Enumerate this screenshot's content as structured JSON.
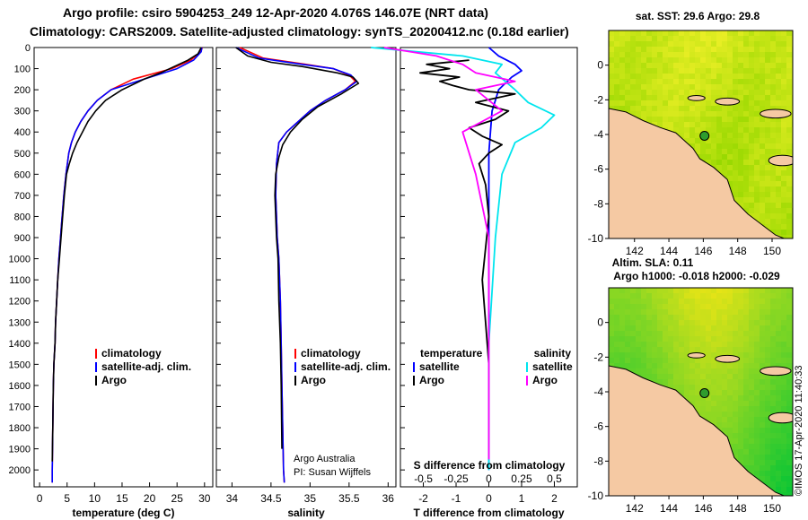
{
  "header": {
    "line1": "Argo profile: csiro 5904253_249 12-Apr-2020 4.076S 146.07E (NRT data)",
    "line2": "Climatology: CARS2009. Satellite-adjusted climatology: synTS_20200412.nc (0.18d earlier)"
  },
  "colors": {
    "climatology": "#ff0000",
    "satellite": "#0000ff",
    "argo": "#000000",
    "sat_salinity": "#00e5ee",
    "argo_salinity": "#ff00ff",
    "land": "#f5c9a3"
  },
  "chart_data": [
    {
      "type": "line",
      "xlabel": "temperature (deg C)",
      "xticks": [
        0,
        5,
        10,
        15,
        20,
        25,
        30
      ],
      "xlim": [
        -1,
        31.5
      ],
      "ylim": [
        2080,
        0
      ],
      "yticks": [
        0,
        100,
        200,
        300,
        400,
        500,
        600,
        700,
        800,
        900,
        1000,
        1100,
        1200,
        1300,
        1400,
        1500,
        1600,
        1700,
        1800,
        1900,
        2000
      ],
      "legend": [
        "climatology",
        "satellite-adj. clim.",
        "Argo"
      ],
      "series": [
        {
          "name": "climatology",
          "x": [
            29.6,
            29.3,
            27.5,
            24,
            17,
            13,
            10.5,
            8.8,
            7.5,
            6.5,
            5.8,
            5.3,
            4.8,
            4.4,
            4.1,
            3.8,
            3.5,
            3.3,
            3.1,
            2.9,
            2.8,
            2.6,
            2.5,
            2.4,
            2.3,
            2.3
          ],
          "y": [
            0,
            20,
            60,
            100,
            150,
            200,
            250,
            300,
            350,
            400,
            450,
            500,
            600,
            700,
            800,
            900,
            1000,
            1100,
            1200,
            1300,
            1400,
            1500,
            1600,
            1800,
            2000,
            2060
          ]
        },
        {
          "name": "satellite-adj. clim.",
          "x": [
            29.5,
            29.4,
            28,
            25,
            19,
            13,
            10.5,
            8.8,
            7.5,
            6.5,
            5.8,
            5.3,
            4.8,
            4.4,
            4.1,
            3.8,
            3.5,
            3.3,
            3.1,
            2.9,
            2.8,
            2.6,
            2.5,
            2.4,
            2.3,
            2.3
          ],
          "y": [
            0,
            20,
            60,
            100,
            150,
            200,
            250,
            300,
            350,
            400,
            450,
            500,
            600,
            700,
            800,
            900,
            1000,
            1100,
            1200,
            1300,
            1400,
            1500,
            1600,
            1800,
            2000,
            2060
          ]
        },
        {
          "name": "Argo",
          "x": [
            29.4,
            28.8,
            27,
            24.5,
            22,
            19,
            15,
            12,
            10.2,
            8.8,
            7.8,
            6.8,
            6,
            5.4,
            4.9,
            4.5,
            4.2,
            3.9,
            3.6,
            3.3,
            3.1,
            2.9,
            2.8,
            2.6,
            2.5,
            2.4,
            2.3
          ],
          "y": [
            0,
            30,
            60,
            90,
            120,
            150,
            200,
            250,
            300,
            350,
            400,
            450,
            500,
            550,
            600,
            700,
            800,
            900,
            1000,
            1100,
            1200,
            1300,
            1400,
            1500,
            1600,
            1800,
            1960
          ]
        }
      ]
    },
    {
      "type": "line",
      "xlabel": "salinity",
      "xticks": [
        34,
        34.5,
        35,
        35.5,
        36
      ],
      "xlim": [
        33.8,
        36.1
      ],
      "ylim": [
        2080,
        0
      ],
      "legend": [
        "climatology",
        "satellite-adj. clim.",
        "Argo"
      ],
      "annotation": [
        "Argo Australia",
        "PI: Susan Wijffels"
      ],
      "series": [
        {
          "name": "climatology",
          "x": [
            34.1,
            34.4,
            34.95,
            35.3,
            35.5,
            35.58,
            35.45,
            35.2,
            35.0,
            34.85,
            34.7,
            34.6,
            34.57,
            34.56,
            34.57,
            34.58,
            34.6,
            34.62,
            34.63,
            34.64,
            34.65,
            34.66,
            34.67
          ],
          "y": [
            0,
            50,
            80,
            100,
            130,
            160,
            200,
            250,
            300,
            350,
            400,
            450,
            550,
            700,
            800,
            900,
            1000,
            1200,
            1400,
            1600,
            1800,
            2000,
            2060
          ]
        },
        {
          "name": "satellite-adj. clim.",
          "x": [
            34.05,
            34.35,
            34.9,
            35.3,
            35.52,
            35.6,
            35.45,
            35.2,
            35.0,
            34.85,
            34.7,
            34.6,
            34.57,
            34.56,
            34.57,
            34.58,
            34.6,
            34.62,
            34.63,
            34.64,
            34.65,
            34.66,
            34.67
          ],
          "y": [
            0,
            50,
            80,
            100,
            130,
            160,
            200,
            250,
            300,
            350,
            400,
            450,
            550,
            700,
            800,
            900,
            1000,
            1200,
            1400,
            1600,
            1800,
            2000,
            2060
          ]
        },
        {
          "name": "Argo",
          "x": [
            34.05,
            34.2,
            34.5,
            34.9,
            35.35,
            35.55,
            35.62,
            35.4,
            35.1,
            34.9,
            34.75,
            34.65,
            34.6,
            34.56,
            34.55,
            34.56,
            34.57,
            34.59,
            34.6,
            34.62,
            34.63,
            34.64
          ],
          "y": [
            0,
            40,
            70,
            90,
            120,
            140,
            170,
            220,
            280,
            340,
            400,
            460,
            520,
            600,
            700,
            800,
            900,
            1000,
            1200,
            1400,
            1600,
            1900
          ]
        }
      ]
    },
    {
      "type": "line",
      "xlabel": "T difference from climatology",
      "xticks": [
        -2,
        -1,
        0,
        1,
        2
      ],
      "xlim": [
        -2.7,
        2.7
      ],
      "ylim": [
        2080,
        0
      ],
      "secondary_axis_label": "S difference from climatology",
      "secondary_xticks": [
        -0.5,
        -0.25,
        0,
        0.25,
        0.5
      ],
      "legend_left_title": "temperature",
      "legend_right_title": "salinity",
      "legend_left": [
        "satellite",
        "Argo"
      ],
      "legend_right": [
        "satellite",
        "Argo"
      ],
      "series": [
        {
          "name": "satellite",
          "group": "temperature",
          "x": [
            0,
            0.3,
            0.8,
            1.0,
            0.7,
            0.5,
            0.3,
            0.2,
            0.1,
            0.05,
            0,
            0,
            0,
            0
          ],
          "y": [
            0,
            40,
            80,
            110,
            140,
            170,
            200,
            250,
            300,
            400,
            500,
            700,
            1000,
            2000
          ]
        },
        {
          "name": "Argo",
          "group": "temperature",
          "x": [
            -0.6,
            -1.9,
            -1.2,
            -2.1,
            -0.9,
            -1.5,
            -1.1,
            -0.6,
            0.8,
            -0.4,
            0.6,
            0.2,
            -0.6,
            -0.2,
            0.4,
            0,
            -0.3,
            -0.1,
            0,
            -0.2,
            0,
            0
          ],
          "y": [
            60,
            80,
            100,
            120,
            140,
            160,
            180,
            200,
            220,
            260,
            300,
            340,
            380,
            420,
            460,
            500,
            550,
            650,
            800,
            1100,
            1500,
            1950
          ]
        },
        {
          "name": "satellite",
          "group": "salinity",
          "x": [
            -0.9,
            -0.2,
            0.1,
            0.05,
            0.2,
            0.3,
            0.5,
            0.4,
            0.2,
            0.1,
            0.05,
            0,
            0
          ],
          "y": [
            0,
            40,
            80,
            120,
            200,
            260,
            320,
            380,
            450,
            600,
            900,
            1400,
            2000
          ]
        },
        {
          "name": "Argo",
          "group": "salinity",
          "x": [
            -0.8,
            -0.4,
            -0.2,
            -0.1,
            0.2,
            -0.1,
            0.1,
            -0.2,
            -0.1,
            0,
            0,
            0
          ],
          "y": [
            0,
            40,
            80,
            120,
            160,
            200,
            300,
            400,
            600,
            900,
            1400,
            1950
          ]
        }
      ]
    },
    {
      "type": "heatmap",
      "title": "sat. SST: 29.6 Argo: 29.8",
      "xticks": [
        142,
        144,
        146,
        148,
        150
      ],
      "yticks": [
        0,
        -2,
        -4,
        -6,
        -8,
        -10
      ],
      "xlim": [
        140.5,
        151.2
      ],
      "ylim": [
        -10,
        2
      ],
      "marker": {
        "lon": 146.07,
        "lat": -4.076
      }
    },
    {
      "type": "heatmap",
      "title": "Altim. SLA: 0.11",
      "subtitle": "Argo h1000: -0.018 h2000: -0.029",
      "xticks": [
        142,
        144,
        146,
        148,
        150
      ],
      "yticks": [
        0,
        -2,
        -4,
        -6,
        -8,
        -10
      ],
      "xlim": [
        140.5,
        151.2
      ],
      "ylim": [
        -10,
        2
      ],
      "marker": {
        "lon": 146.07,
        "lat": -4.076
      }
    }
  ],
  "footer": {
    "stamp": "©IMOS 17-Apr-2020 11:40:33"
  }
}
